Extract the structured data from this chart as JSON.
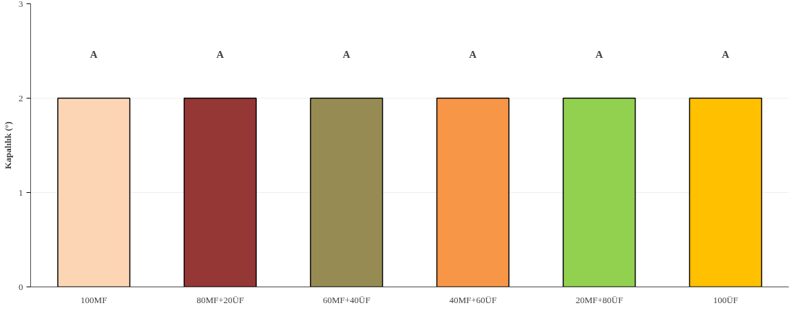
{
  "chart_data": {
    "type": "bar",
    "ylabel": "Kapalılık (°)",
    "categories": [
      "100MF",
      "80MF+20ÜF",
      "60MF+40ÜF",
      "40MF+60ÜF",
      "20MF+80ÜF",
      "100ÜF"
    ],
    "values": [
      2,
      2,
      2,
      2,
      2,
      2
    ],
    "colors": [
      "#fcd5b5",
      "#953735",
      "#968c53",
      "#f79646",
      "#92d050",
      "#ffc000"
    ],
    "ylim": [
      0,
      3
    ],
    "yticks": [
      0,
      1,
      2,
      3
    ],
    "grid": "y",
    "annotations": [
      "A",
      "A",
      "A",
      "A",
      "A",
      "A"
    ]
  }
}
